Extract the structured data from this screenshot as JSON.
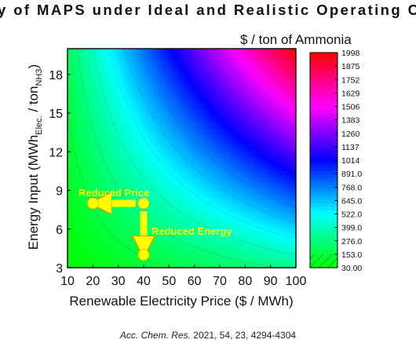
{
  "header": {
    "title": "y of MAPS under Ideal and Realistic Operating Co",
    "unit_label": "$ / ton of Ammonia"
  },
  "citation": {
    "journal": "Acc. Chem. Res.",
    "details": "2021, 54, 23, 4294-4304"
  },
  "chart_data": {
    "type": "heatmap",
    "title": "y of MAPS under Ideal and Realistic Operating Co",
    "xlabel": "Renewable Electricity Price ($ / MWh)",
    "ylabel": {
      "main": "Energy Input (MWh",
      "sub1": "Elec.",
      "mid": " / ton",
      "sub2": "NH3",
      "end": ")"
    },
    "xlim": [
      10,
      100
    ],
    "ylim": [
      3,
      20
    ],
    "xticks": [
      10,
      20,
      30,
      40,
      50,
      60,
      70,
      80,
      90,
      100
    ],
    "yticks": [
      3,
      6,
      9,
      12,
      15,
      18
    ],
    "colorbar": {
      "label": "$ / ton of Ammonia",
      "min": 30.0,
      "max": 1998,
      "levels": [
        "1998",
        "1875",
        "1752",
        "1629",
        "1506",
        "1383",
        "1260",
        "1137",
        "1014",
        "891.0",
        "768.0",
        "645.0",
        "522.0",
        "399.0",
        "276.0",
        "153.0",
        "30.00"
      ]
    },
    "points": [
      {
        "x": 20,
        "y": 8
      },
      {
        "x": 40,
        "y": 8
      },
      {
        "x": 40,
        "y": 4
      }
    ],
    "annotations": [
      {
        "text": "Reduced Price",
        "from": [
          40,
          8
        ],
        "to": [
          20,
          8
        ]
      },
      {
        "text": "Reduced Energy",
        "from": [
          40,
          8
        ],
        "to": [
          40,
          4
        ]
      }
    ],
    "hatched_region": "lower-left",
    "color_scale": [
      "#00ff00",
      "#00ffff",
      "#0000ff",
      "#ff00ff",
      "#ff0000"
    ],
    "annotation_color": "#ffff00"
  }
}
